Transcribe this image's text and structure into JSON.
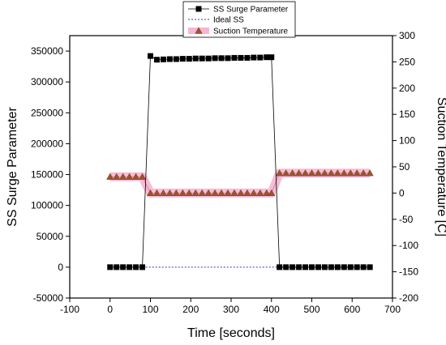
{
  "chart_data": {
    "type": "line",
    "title": "",
    "xlabel": "Time [seconds]",
    "ylabel": "SS Surge Parameter",
    "y2label": "Suction Temperature [C]",
    "xlim": [
      -100,
      700
    ],
    "ylim": [
      -50000,
      375000
    ],
    "y2lim": [
      -200,
      300
    ],
    "x_ticks": [
      -100,
      0,
      100,
      200,
      300,
      400,
      500,
      600,
      700
    ],
    "y_ticks": [
      -50000,
      0,
      50000,
      100000,
      150000,
      200000,
      250000,
      300000,
      350000
    ],
    "y2_ticks": [
      -200,
      -150,
      -100,
      -50,
      0,
      50,
      100,
      150,
      200,
      250,
      300
    ],
    "grid": false,
    "legend_position": "top-center",
    "series": [
      {
        "name": "SS Surge Parameter",
        "axis": "left",
        "color": "#000000",
        "marker": "square",
        "line_style": "solid",
        "x": [
          0,
          16,
          32,
          48,
          64,
          80,
          100,
          116,
          132,
          148,
          164,
          180,
          196,
          212,
          228,
          244,
          260,
          276,
          292,
          308,
          324,
          340,
          356,
          372,
          388,
          400,
          420,
          436,
          452,
          468,
          484,
          500,
          516,
          532,
          548,
          564,
          580,
          596,
          612,
          628,
          644
        ],
        "y": [
          0,
          0,
          0,
          0,
          0,
          0,
          342000,
          336000,
          336500,
          337000,
          337000,
          337500,
          337500,
          338000,
          338000,
          338000,
          338500,
          338500,
          338500,
          339000,
          339000,
          339000,
          339500,
          339500,
          340000,
          340000,
          0,
          0,
          0,
          0,
          0,
          0,
          0,
          0,
          0,
          0,
          0,
          0,
          0,
          0,
          0
        ]
      },
      {
        "name": "Ideal SS",
        "axis": "left",
        "color": "#3333cc",
        "marker": "none",
        "line_style": "dotted",
        "x": [
          0,
          644
        ],
        "y": [
          0,
          0
        ]
      },
      {
        "name": "Suction Temperature",
        "axis": "right",
        "color": "#a0522d",
        "band_color": "#f4b6d2",
        "marker": "triangle",
        "line_style": "solid",
        "x": [
          0,
          16,
          32,
          48,
          64,
          80,
          100,
          116,
          132,
          148,
          164,
          180,
          196,
          212,
          228,
          244,
          260,
          276,
          292,
          308,
          324,
          340,
          356,
          372,
          388,
          400,
          420,
          436,
          452,
          468,
          484,
          500,
          516,
          532,
          548,
          564,
          580,
          596,
          612,
          628,
          644
        ],
        "y": [
          31,
          31,
          31,
          31,
          31,
          31,
          0,
          0,
          0,
          0,
          0,
          0,
          0,
          0,
          0,
          0,
          0,
          0,
          0,
          0,
          0,
          0,
          0,
          0,
          0,
          0,
          38,
          38,
          38,
          38,
          38,
          38,
          38,
          38,
          38,
          38,
          38,
          38,
          38,
          38,
          38
        ]
      }
    ]
  }
}
